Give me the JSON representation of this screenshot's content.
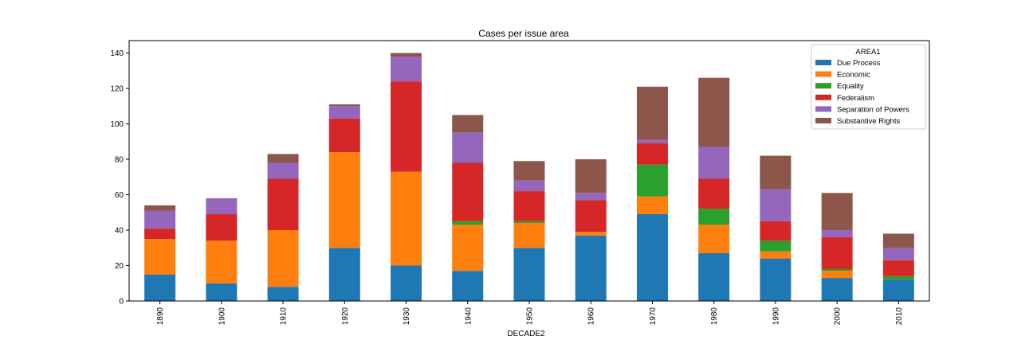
{
  "chart_data": {
    "type": "bar",
    "stacked": true,
    "title": "Cases per issue area",
    "xlabel": "DECADE2",
    "ylabel": "",
    "ylim": [
      0,
      147
    ],
    "yticks": [
      0,
      20,
      40,
      60,
      80,
      100,
      120,
      140
    ],
    "categories": [
      "1890",
      "1900",
      "1910",
      "1920",
      "1930",
      "1940",
      "1950",
      "1960",
      "1970",
      "1980",
      "1990",
      "2000",
      "2010"
    ],
    "legend": {
      "title": "AREA1",
      "placement": "top-right"
    },
    "series": [
      {
        "name": "Due Process",
        "color": "#1f77b4",
        "values": [
          15,
          10,
          8,
          30,
          20,
          17,
          30,
          37,
          49,
          27,
          24,
          13,
          12
        ]
      },
      {
        "name": "Economic",
        "color": "#ff7f0e",
        "values": [
          20,
          24,
          32,
          54,
          53,
          26,
          14,
          2,
          10,
          16,
          4,
          4,
          0
        ]
      },
      {
        "name": "Equality",
        "color": "#2ca02c",
        "values": [
          0,
          0,
          0,
          0,
          0,
          2,
          1,
          0,
          18,
          9,
          6,
          1,
          2
        ]
      },
      {
        "name": "Federalism",
        "color": "#d62728",
        "values": [
          6,
          15,
          29,
          19,
          51,
          33,
          17,
          18,
          12,
          17,
          11,
          18,
          9
        ]
      },
      {
        "name": "Separation of Powers",
        "color": "#9467bd",
        "values": [
          10,
          9,
          9,
          7,
          14,
          17,
          6,
          4,
          2,
          18,
          18,
          4,
          7
        ]
      },
      {
        "name": "Substantive Rights",
        "color": "#8c564b",
        "values": [
          3,
          0,
          5,
          1,
          2,
          10,
          11,
          19,
          30,
          39,
          19,
          21,
          8
        ]
      }
    ]
  }
}
